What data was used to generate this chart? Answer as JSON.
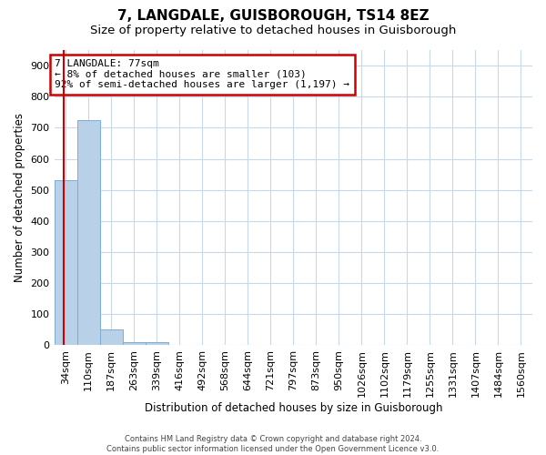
{
  "title": "7, LANGDALE, GUISBOROUGH, TS14 8EZ",
  "subtitle": "Size of property relative to detached houses in Guisborough",
  "xlabel": "Distribution of detached houses by size in Guisborough",
  "ylabel": "Number of detached properties",
  "footer_line1": "Contains HM Land Registry data © Crown copyright and database right 2024.",
  "footer_line2": "Contains public sector information licensed under the Open Government Licence v3.0.",
  "categories": [
    "34sqm",
    "110sqm",
    "187sqm",
    "263sqm",
    "339sqm",
    "416sqm",
    "492sqm",
    "568sqm",
    "644sqm",
    "721sqm",
    "797sqm",
    "873sqm",
    "950sqm",
    "1026sqm",
    "1102sqm",
    "1179sqm",
    "1255sqm",
    "1331sqm",
    "1407sqm",
    "1484sqm",
    "1560sqm"
  ],
  "values": [
    530,
    725,
    50,
    10,
    10,
    0,
    0,
    0,
    0,
    0,
    0,
    0,
    0,
    0,
    0,
    0,
    0,
    0,
    0,
    0,
    0
  ],
  "bar_color": "#b8d0e8",
  "bar_edge_color": "#7aaed0",
  "ylim": [
    0,
    950
  ],
  "yticks": [
    0,
    100,
    200,
    300,
    400,
    500,
    600,
    700,
    800,
    900
  ],
  "property_line_x": -0.08,
  "property_line_color": "#cc0000",
  "annotation_text": "7 LANGDALE: 77sqm\n← 8% of detached houses are smaller (103)\n92% of semi-detached houses are larger (1,197) →",
  "annotation_box_color": "#cc0000",
  "background_color": "#ffffff",
  "grid_color": "#c8d8e8",
  "title_fontsize": 11,
  "subtitle_fontsize": 9.5,
  "axis_label_fontsize": 8.5,
  "tick_fontsize": 8,
  "annotation_fontsize": 8,
  "footer_fontsize": 6
}
